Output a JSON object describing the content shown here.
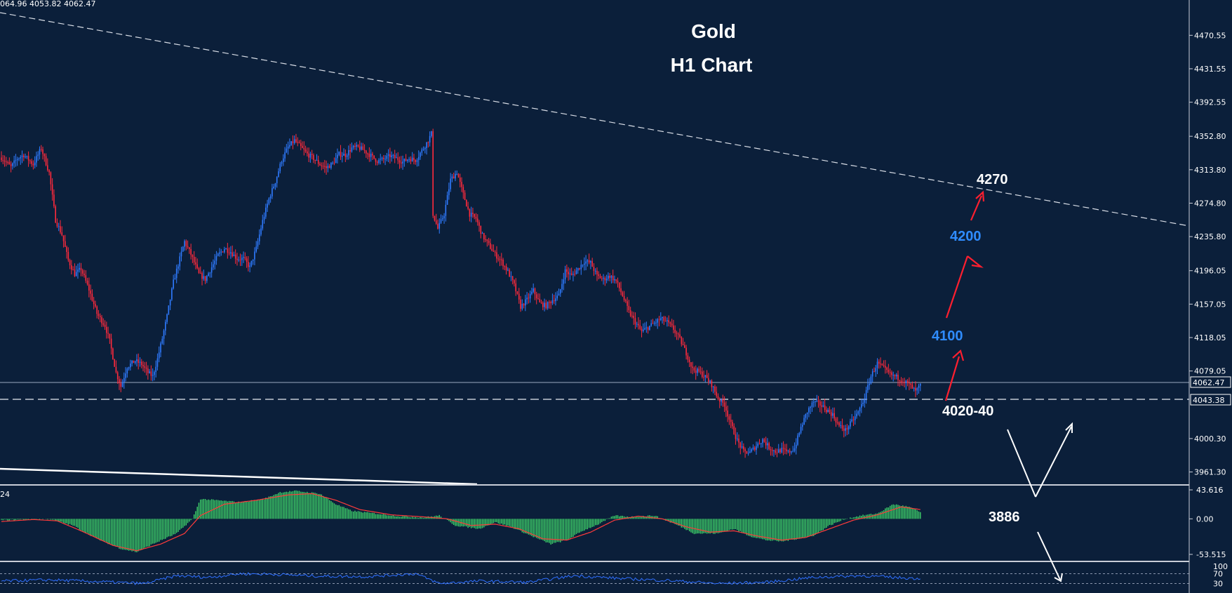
{
  "header": {
    "ohlc_readout": "064.96 4053.82 4062.47",
    "macd_label": "24"
  },
  "chart_data": {
    "type": "candlestick",
    "title": "Gold",
    "subtitle": "H1 Chart",
    "price_axis": {
      "ticks": [
        "4470.55",
        "4431.55",
        "4392.55",
        "4352.80",
        "4313.80",
        "4274.80",
        "4235.80",
        "4196.05",
        "4157.05",
        "4118.05",
        "4079.05",
        "4000.30",
        "3961.30"
      ],
      "ylim": [
        3947,
        4497
      ],
      "current_price": 4062.47,
      "current_price_label": "4062.47",
      "support_price": 4043.38,
      "support_price_label": "4043.38"
    },
    "price_path": [
      [
        0,
        4328
      ],
      [
        6,
        4317
      ],
      [
        10,
        4327
      ],
      [
        14,
        4331
      ],
      [
        20,
        4320
      ],
      [
        25,
        4339
      ],
      [
        30,
        4310
      ],
      [
        34,
        4255
      ],
      [
        38,
        4238
      ],
      [
        42,
        4208
      ],
      [
        46,
        4192
      ],
      [
        50,
        4198
      ],
      [
        55,
        4174
      ],
      [
        60,
        4146
      ],
      [
        65,
        4132
      ],
      [
        68,
        4114
      ],
      [
        72,
        4077
      ],
      [
        75,
        4061
      ],
      [
        79,
        4084
      ],
      [
        84,
        4091
      ],
      [
        88,
        4087
      ],
      [
        92,
        4077
      ],
      [
        95,
        4073
      ],
      [
        98,
        4093
      ],
      [
        101,
        4117
      ],
      [
        104,
        4143
      ],
      [
        108,
        4183
      ],
      [
        112,
        4210
      ],
      [
        115,
        4230
      ],
      [
        119,
        4215
      ],
      [
        124,
        4192
      ],
      [
        128,
        4186
      ],
      [
        132,
        4200
      ],
      [
        136,
        4214
      ],
      [
        140,
        4222
      ],
      [
        144,
        4218
      ],
      [
        148,
        4210
      ],
      [
        152,
        4210
      ],
      [
        156,
        4200
      ],
      [
        160,
        4222
      ],
      [
        164,
        4254
      ],
      [
        168,
        4280
      ],
      [
        172,
        4300
      ],
      [
        176,
        4325
      ],
      [
        180,
        4340
      ],
      [
        184,
        4348
      ],
      [
        188,
        4340
      ],
      [
        192,
        4332
      ],
      [
        196,
        4327
      ],
      [
        200,
        4320
      ],
      [
        204,
        4316
      ],
      [
        208,
        4321
      ],
      [
        212,
        4332
      ],
      [
        216,
        4331
      ],
      [
        220,
        4339
      ],
      [
        224,
        4340
      ],
      [
        228,
        4336
      ],
      [
        232,
        4330
      ],
      [
        236,
        4324
      ],
      [
        240,
        4326
      ],
      [
        244,
        4330
      ],
      [
        248,
        4327
      ],
      [
        252,
        4323
      ],
      [
        256,
        4327
      ],
      [
        260,
        4325
      ],
      [
        264,
        4336
      ],
      [
        268,
        4348
      ],
      [
        270,
        4356
      ],
      [
        271,
        4262
      ],
      [
        274,
        4245
      ],
      [
        278,
        4262
      ],
      [
        282,
        4302
      ],
      [
        286,
        4311
      ],
      [
        290,
        4285
      ],
      [
        294,
        4262
      ],
      [
        298,
        4257
      ],
      [
        302,
        4237
      ],
      [
        306,
        4226
      ],
      [
        310,
        4215
      ],
      [
        314,
        4207
      ],
      [
        318,
        4195
      ],
      [
        322,
        4179
      ],
      [
        326,
        4154
      ],
      [
        330,
        4162
      ],
      [
        334,
        4173
      ],
      [
        338,
        4158
      ],
      [
        342,
        4155
      ],
      [
        346,
        4162
      ],
      [
        350,
        4167
      ],
      [
        354,
        4196
      ],
      [
        358,
        4190
      ],
      [
        362,
        4198
      ],
      [
        366,
        4207
      ],
      [
        370,
        4205
      ],
      [
        374,
        4190
      ],
      [
        378,
        4186
      ],
      [
        382,
        4190
      ],
      [
        386,
        4184
      ],
      [
        390,
        4167
      ],
      [
        394,
        4148
      ],
      [
        398,
        4136
      ],
      [
        402,
        4125
      ],
      [
        406,
        4130
      ],
      [
        410,
        4135
      ],
      [
        414,
        4140
      ],
      [
        418,
        4136
      ],
      [
        422,
        4128
      ],
      [
        426,
        4116
      ],
      [
        430,
        4100
      ],
      [
        434,
        4081
      ],
      [
        438,
        4078
      ],
      [
        442,
        4072
      ],
      [
        446,
        4063
      ],
      [
        450,
        4047
      ],
      [
        454,
        4040
      ],
      [
        458,
        4017
      ],
      [
        462,
        3998
      ],
      [
        466,
        3985
      ],
      [
        470,
        3984
      ],
      [
        474,
        3992
      ],
      [
        478,
        3999
      ],
      [
        482,
        3990
      ],
      [
        486,
        3985
      ],
      [
        490,
        3987
      ],
      [
        494,
        3984
      ],
      [
        498,
        3989
      ],
      [
        502,
        4013
      ],
      [
        506,
        4032
      ],
      [
        510,
        4043
      ],
      [
        514,
        4040
      ],
      [
        518,
        4034
      ],
      [
        522,
        4028
      ],
      [
        526,
        4015
      ],
      [
        530,
        4010
      ],
      [
        534,
        4020
      ],
      [
        538,
        4031
      ],
      [
        542,
        4048
      ],
      [
        546,
        4073
      ],
      [
        550,
        4088
      ],
      [
        554,
        4082
      ],
      [
        558,
        4075
      ],
      [
        562,
        4072
      ],
      [
        566,
        4068
      ],
      [
        570,
        4063
      ],
      [
        574,
        4055
      ],
      [
        577,
        4062
      ]
    ],
    "macd": {
      "label": "24",
      "ticks": [
        "43.616",
        "0.00",
        "-53.515"
      ],
      "ylim": [
        -62,
        50
      ],
      "histogram": [
        [
          0,
          -2
        ],
        [
          15,
          -1
        ],
        [
          30,
          0
        ],
        [
          45,
          -10
        ],
        [
          60,
          -30
        ],
        [
          75,
          -45
        ],
        [
          85,
          -50
        ],
        [
          95,
          -38
        ],
        [
          110,
          -22
        ],
        [
          120,
          0
        ],
        [
          125,
          30
        ],
        [
          135,
          28
        ],
        [
          150,
          25
        ],
        [
          165,
          30
        ],
        [
          175,
          40
        ],
        [
          185,
          42
        ],
        [
          200,
          38
        ],
        [
          210,
          22
        ],
        [
          220,
          12
        ],
        [
          235,
          8
        ],
        [
          250,
          4
        ],
        [
          265,
          2
        ],
        [
          275,
          5
        ],
        [
          285,
          -10
        ],
        [
          300,
          -15
        ],
        [
          310,
          -5
        ],
        [
          320,
          -12
        ],
        [
          335,
          -28
        ],
        [
          345,
          -38
        ],
        [
          355,
          -32
        ],
        [
          365,
          -18
        ],
        [
          375,
          -8
        ],
        [
          385,
          5
        ],
        [
          395,
          3
        ],
        [
          410,
          5
        ],
        [
          425,
          -10
        ],
        [
          435,
          -22
        ],
        [
          450,
          -22
        ],
        [
          460,
          -15
        ],
        [
          470,
          -26
        ],
        [
          480,
          -32
        ],
        [
          490,
          -34
        ],
        [
          500,
          -30
        ],
        [
          510,
          -25
        ],
        [
          520,
          -10
        ],
        [
          530,
          0
        ],
        [
          540,
          5
        ],
        [
          550,
          8
        ],
        [
          560,
          22
        ],
        [
          570,
          18
        ],
        [
          577,
          10
        ]
      ],
      "signal": [
        [
          0,
          -4
        ],
        [
          20,
          -1
        ],
        [
          35,
          -3
        ],
        [
          50,
          -18
        ],
        [
          70,
          -40
        ],
        [
          85,
          -48
        ],
        [
          100,
          -38
        ],
        [
          115,
          -22
        ],
        [
          125,
          5
        ],
        [
          140,
          22
        ],
        [
          160,
          28
        ],
        [
          180,
          36
        ],
        [
          195,
          38
        ],
        [
          210,
          28
        ],
        [
          225,
          14
        ],
        [
          245,
          6
        ],
        [
          265,
          3
        ],
        [
          280,
          0
        ],
        [
          295,
          -10
        ],
        [
          310,
          -8
        ],
        [
          325,
          -15
        ],
        [
          340,
          -30
        ],
        [
          355,
          -32
        ],
        [
          370,
          -20
        ],
        [
          385,
          -2
        ],
        [
          400,
          4
        ],
        [
          415,
          0
        ],
        [
          430,
          -12
        ],
        [
          445,
          -20
        ],
        [
          460,
          -18
        ],
        [
          475,
          -26
        ],
        [
          490,
          -32
        ],
        [
          505,
          -28
        ],
        [
          520,
          -15
        ],
        [
          535,
          -2
        ],
        [
          550,
          6
        ],
        [
          565,
          18
        ],
        [
          577,
          14
        ]
      ]
    },
    "oscillator": {
      "ticks": [
        "100",
        "70",
        "30"
      ],
      "ylim": [
        0,
        100
      ],
      "values": [
        [
          0,
          40
        ],
        [
          30,
          45
        ],
        [
          60,
          38
        ],
        [
          90,
          30
        ],
        [
          110,
          62
        ],
        [
          130,
          55
        ],
        [
          150,
          70
        ],
        [
          170,
          68
        ],
        [
          200,
          60
        ],
        [
          230,
          58
        ],
        [
          260,
          70
        ],
        [
          275,
          30
        ],
        [
          300,
          40
        ],
        [
          330,
          35
        ],
        [
          360,
          62
        ],
        [
          390,
          50
        ],
        [
          420,
          42
        ],
        [
          450,
          30
        ],
        [
          480,
          35
        ],
        [
          510,
          55
        ],
        [
          540,
          62
        ],
        [
          560,
          55
        ],
        [
          577,
          50
        ]
      ]
    },
    "annotations": [
      {
        "label": "4270",
        "color": "#ffffff"
      },
      {
        "label": "4200",
        "color": "#2f8cff"
      },
      {
        "label": "4100",
        "color": "#2f8cff"
      },
      {
        "label": "4020-40",
        "color": "#ffffff"
      },
      {
        "label": "3886",
        "color": "#ffffff"
      }
    ],
    "colors": {
      "background": "#0b1f3a",
      "bull": "#2f7bff",
      "bear": "#ff2a3c",
      "macd_hist": "#3fd46a",
      "macd_signal": "#ff3b3b",
      "oscillator": "#2f6fff",
      "forecast_arrow": "#ff1f2f",
      "scenario_arrow": "#ffffff"
    }
  }
}
